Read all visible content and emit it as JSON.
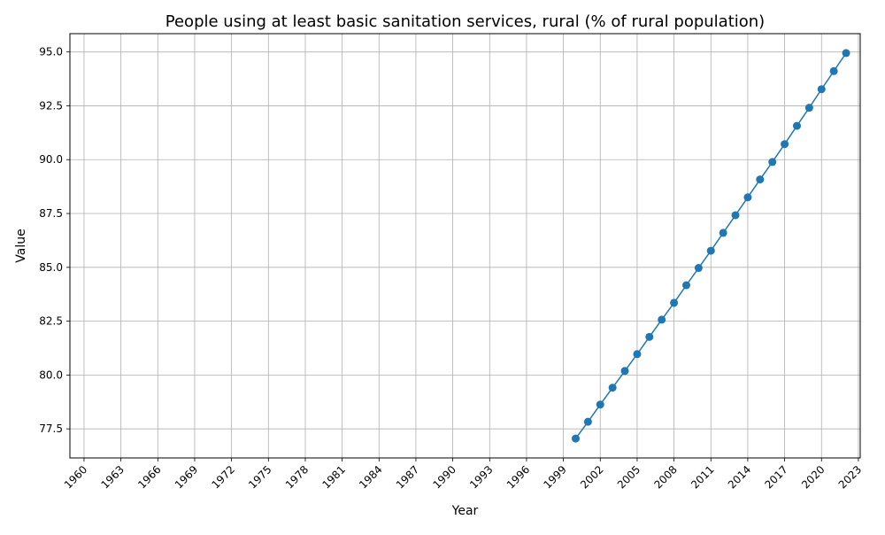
{
  "chart_data": {
    "type": "line",
    "title": "People using at least basic sanitation services, rural (% of rural population)",
    "xlabel": "Year",
    "ylabel": "Value",
    "xlim": [
      1958.85,
      2023.15
    ],
    "ylim": [
      76.15,
      95.85
    ],
    "grid": true,
    "x_ticks": [
      "1960",
      "1963",
      "1966",
      "1969",
      "1972",
      "1975",
      "1978",
      "1981",
      "1984",
      "1987",
      "1990",
      "1993",
      "1996",
      "1999",
      "2002",
      "2005",
      "2008",
      "2011",
      "2014",
      "2017",
      "2020",
      "2023"
    ],
    "y_ticks": [
      "77.5",
      "80.0",
      "82.5",
      "85.0",
      "87.5",
      "90.0",
      "92.5",
      "95.0"
    ],
    "series": [
      {
        "color": "#1f77b4",
        "marker": "circle",
        "x": [
          2000,
          2001,
          2002,
          2003,
          2004,
          2005,
          2006,
          2007,
          2008,
          2009,
          2010,
          2011,
          2012,
          2013,
          2014,
          2015,
          2016,
          2017,
          2018,
          2019,
          2020,
          2021,
          2022
        ],
        "y": [
          77.05,
          77.83,
          78.63,
          79.41,
          80.19,
          80.97,
          81.77,
          82.57,
          83.35,
          84.17,
          84.97,
          85.77,
          86.6,
          87.42,
          88.25,
          89.08,
          89.89,
          90.72,
          91.57,
          92.41,
          93.27,
          94.11,
          94.95
        ]
      }
    ]
  }
}
